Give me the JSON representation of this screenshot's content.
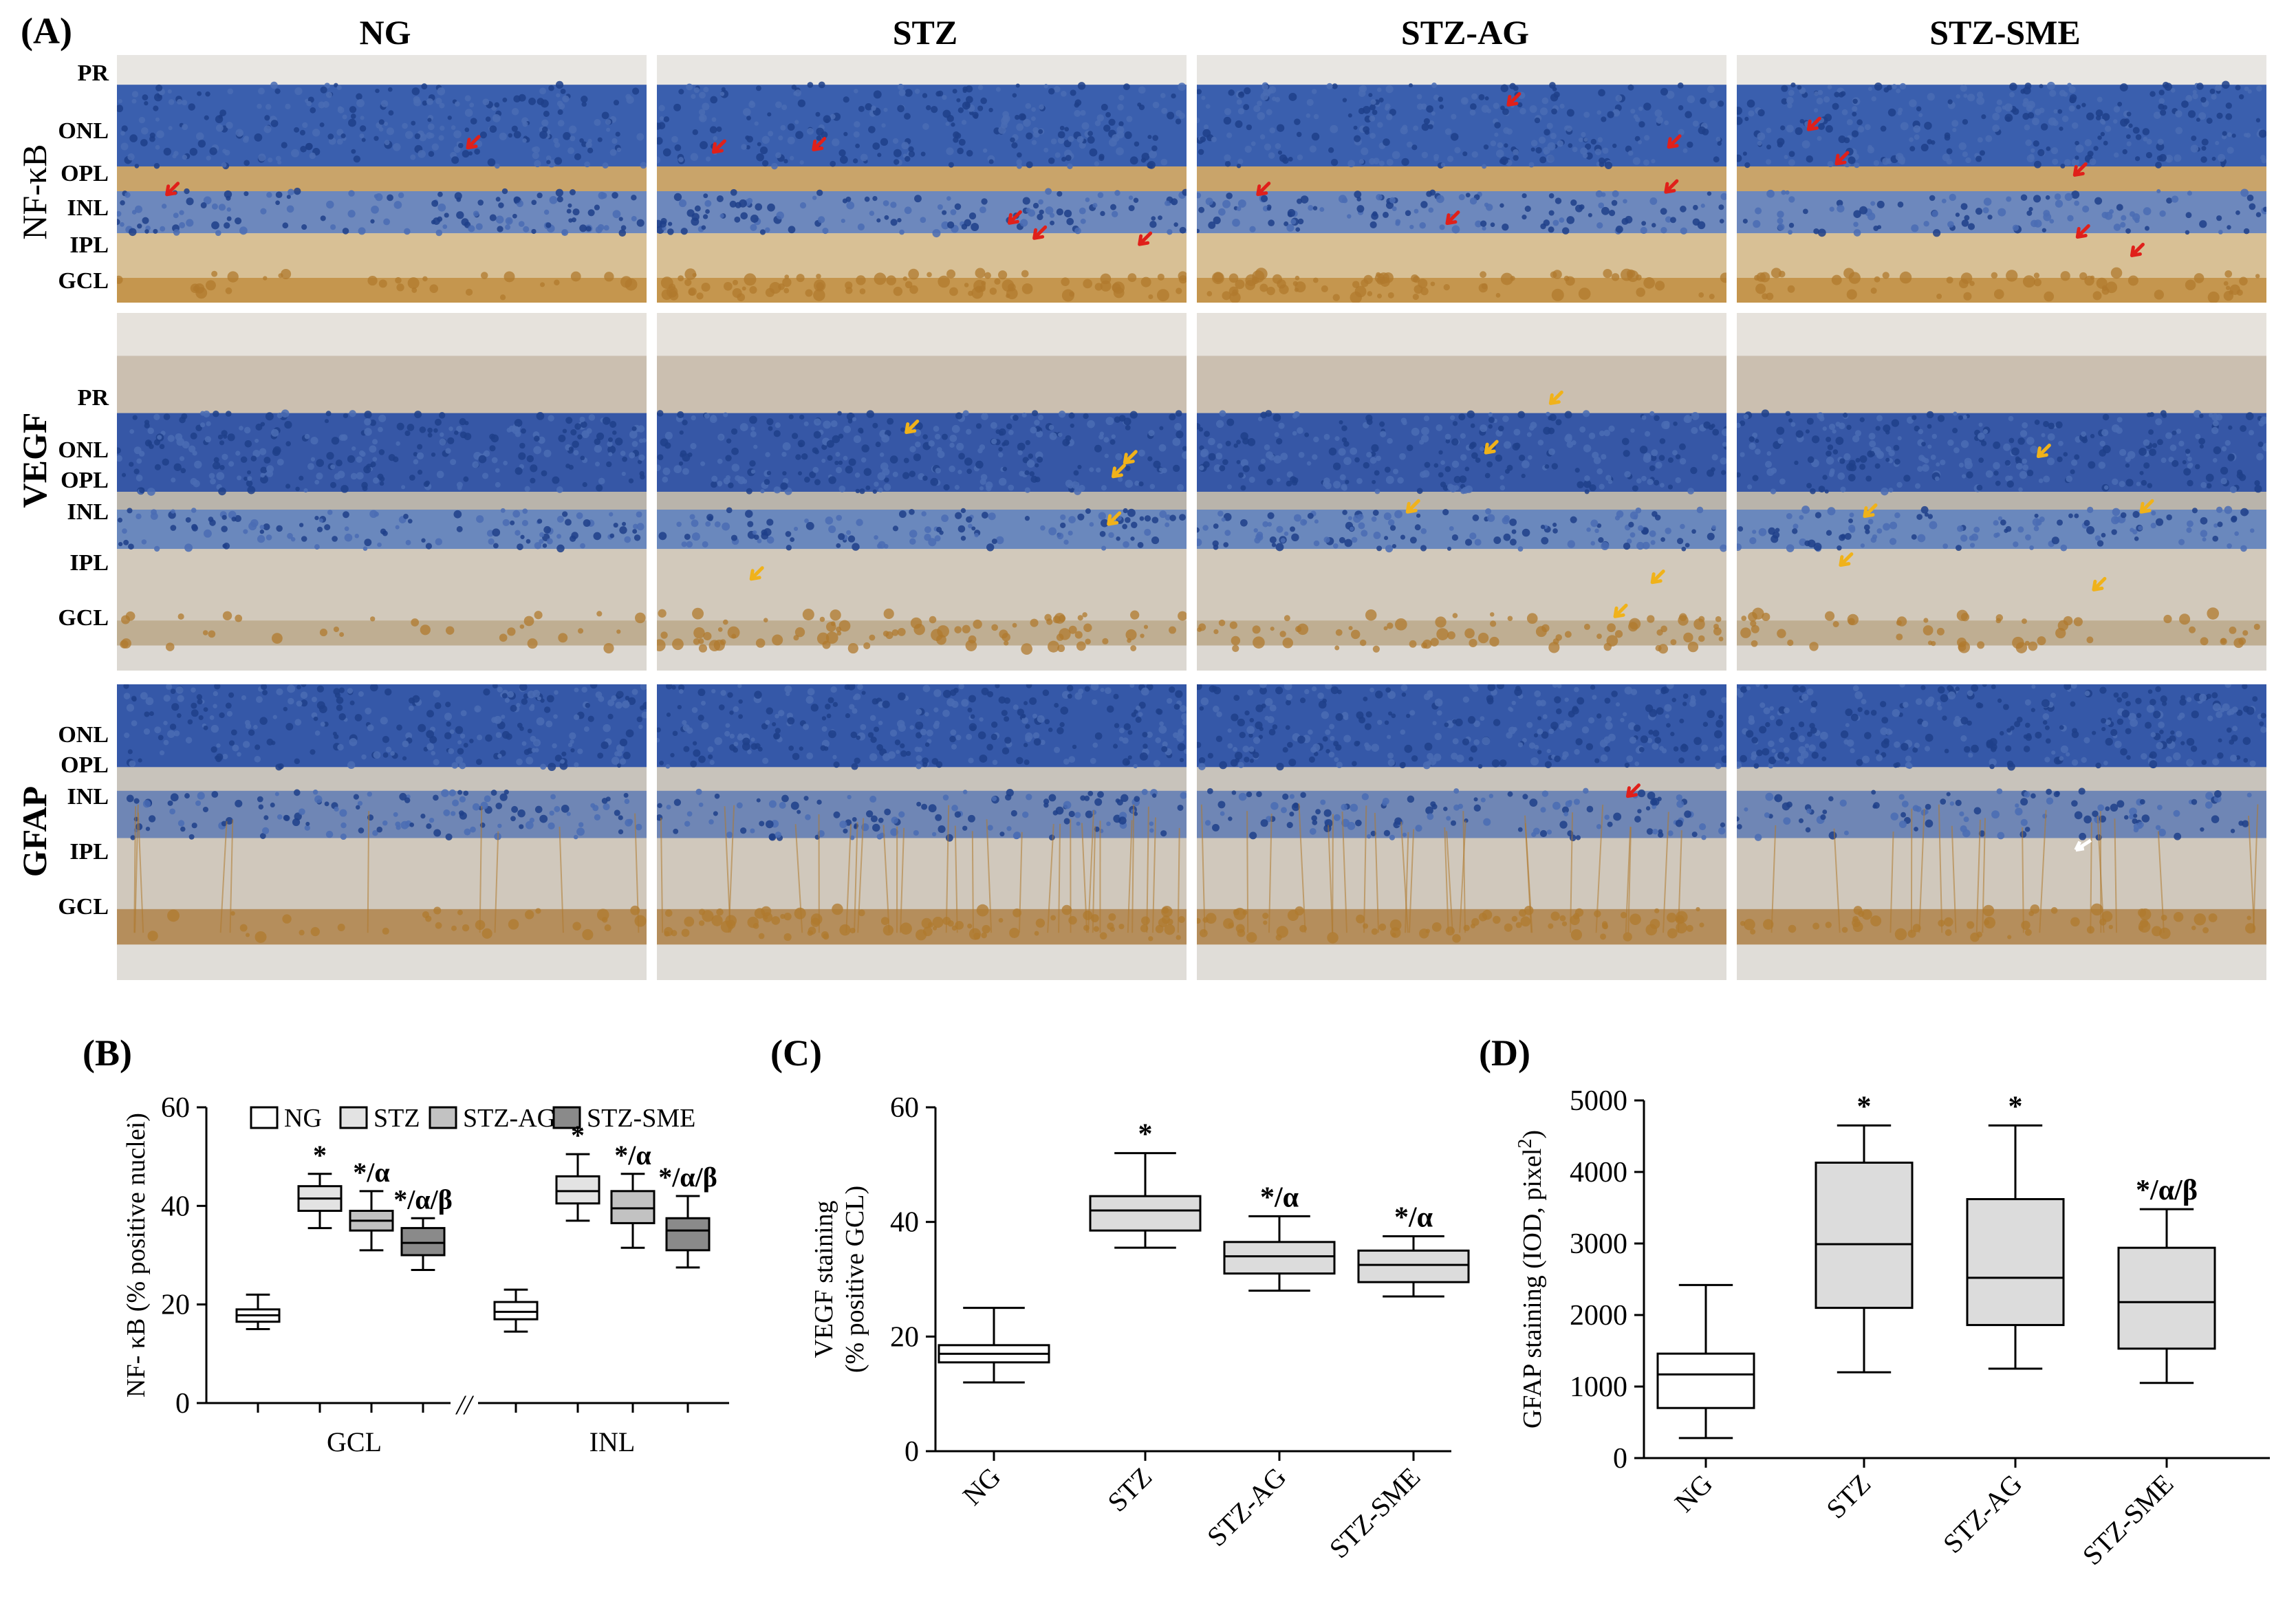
{
  "panels": {
    "a": "(A)",
    "b": "(B)",
    "c": "(C)",
    "d": "(D)"
  },
  "columns": [
    "NG",
    "STZ",
    "STZ-AG",
    "STZ-SME"
  ],
  "rows": [
    {
      "name": "NF-κB",
      "layers": [
        "PR",
        "ONL",
        "OPL",
        "INL",
        "IPL",
        "GCL"
      ]
    },
    {
      "name": "VEGF",
      "layers": [
        "PR",
        "ONL",
        "OPL",
        "INL",
        "IPL",
        "GCL"
      ]
    },
    {
      "name": "GFAP",
      "layers": [
        "ONL",
        "OPL",
        "INL",
        "IPL",
        "GCL"
      ]
    }
  ],
  "colors": {
    "hematoxylin": "#2f55a4",
    "dab": "#b07a2e",
    "background": "#d9d2c6",
    "red_arrow": "#e0201a",
    "yellow_arrow": "#f0b21a",
    "white_arrow": "#ffffff"
  },
  "chart_data": [
    {
      "panel": "(B)",
      "type": "box",
      "ylabel": "NF- κB (% positive nuclei)",
      "ylim": [
        0,
        60
      ],
      "yticks": [
        0,
        20,
        40,
        60
      ],
      "groups": [
        "GCL",
        "INL"
      ],
      "axis_break": "//",
      "legend": [
        "NG",
        "STZ",
        "STZ-AG",
        "STZ-SME"
      ],
      "legend_placement": "top",
      "fills": [
        "#ffffff",
        "#e3e3e3",
        "#c2c2c2",
        "#8a8a8a"
      ],
      "series": [
        {
          "name": "NG",
          "group": "GCL",
          "min": 15,
          "q1": 16.5,
          "median": 17.8,
          "q3": 19,
          "max": 22,
          "annotation": ""
        },
        {
          "name": "STZ",
          "group": "GCL",
          "min": 35.5,
          "q1": 39,
          "median": 41.5,
          "q3": 44,
          "max": 46.5,
          "annotation": "*"
        },
        {
          "name": "STZ-AG",
          "group": "GCL",
          "min": 31,
          "q1": 35,
          "median": 37,
          "q3": 39,
          "max": 43,
          "annotation": "*/α"
        },
        {
          "name": "STZ-SME",
          "group": "GCL",
          "min": 27,
          "q1": 30,
          "median": 32.5,
          "q3": 35.5,
          "max": 37.5,
          "annotation": "*/α/β"
        },
        {
          "name": "NG",
          "group": "INL",
          "min": 14.5,
          "q1": 17,
          "median": 18.5,
          "q3": 20.5,
          "max": 23,
          "annotation": ""
        },
        {
          "name": "STZ",
          "group": "INL",
          "min": 37,
          "q1": 40.5,
          "median": 43,
          "q3": 46,
          "max": 50.5,
          "annotation": "*"
        },
        {
          "name": "STZ-AG",
          "group": "INL",
          "min": 31.5,
          "q1": 36.5,
          "median": 39.5,
          "q3": 43,
          "max": 46.5,
          "annotation": "*/α"
        },
        {
          "name": "STZ-SME",
          "group": "INL",
          "min": 27.5,
          "q1": 31,
          "median": 35,
          "q3": 37.5,
          "max": 42,
          "annotation": "*/α/β"
        }
      ]
    },
    {
      "panel": "(C)",
      "type": "box",
      "ylabel_lines": [
        "VEGF staining",
        "(% positive GCL)"
      ],
      "ylim": [
        0,
        60
      ],
      "yticks": [
        0,
        20,
        40,
        60
      ],
      "categories": [
        "NG",
        "STZ",
        "STZ-AG",
        "STZ-SME"
      ],
      "fills": [
        "#ffffff",
        "#dcdcdc",
        "#dcdcdc",
        "#dcdcdc"
      ],
      "series": [
        {
          "name": "NG",
          "min": 12,
          "q1": 15.5,
          "median": 17,
          "q3": 18.5,
          "max": 25,
          "annotation": ""
        },
        {
          "name": "STZ",
          "min": 35.5,
          "q1": 38.5,
          "median": 42,
          "q3": 44.5,
          "max": 52,
          "annotation": "*"
        },
        {
          "name": "STZ-AG",
          "min": 28,
          "q1": 31,
          "median": 34,
          "q3": 36.5,
          "max": 41,
          "annotation": "*/α"
        },
        {
          "name": "STZ-SME",
          "min": 27,
          "q1": 29.5,
          "median": 32.5,
          "q3": 35,
          "max": 37.5,
          "annotation": "*/α"
        }
      ]
    },
    {
      "panel": "(D)",
      "type": "box",
      "ylabel": "GFAP staining (IOD, pixel",
      "ylabel_sup": "2",
      "ylabel_end": ")",
      "ylim": [
        0,
        5000
      ],
      "yticks": [
        0,
        1000,
        2000,
        3000,
        4000,
        5000
      ],
      "categories": [
        "NG",
        "STZ",
        "STZ-AG",
        "STZ-SME"
      ],
      "fills": [
        "#ffffff",
        "#dcdcdc",
        "#dcdcdc",
        "#dcdcdc"
      ],
      "series": [
        {
          "name": "NG",
          "min": 280,
          "q1": 700,
          "median": 1170,
          "q3": 1460,
          "max": 2420,
          "annotation": ""
        },
        {
          "name": "STZ",
          "min": 1200,
          "q1": 2100,
          "median": 2990,
          "q3": 4130,
          "max": 4650,
          "annotation": "*"
        },
        {
          "name": "STZ-AG",
          "min": 1250,
          "q1": 1860,
          "median": 2520,
          "q3": 3620,
          "max": 4650,
          "annotation": "*"
        },
        {
          "name": "STZ-SME",
          "min": 1050,
          "q1": 1530,
          "median": 2180,
          "q3": 2940,
          "max": 3480,
          "annotation": "*/α/β"
        }
      ]
    }
  ]
}
